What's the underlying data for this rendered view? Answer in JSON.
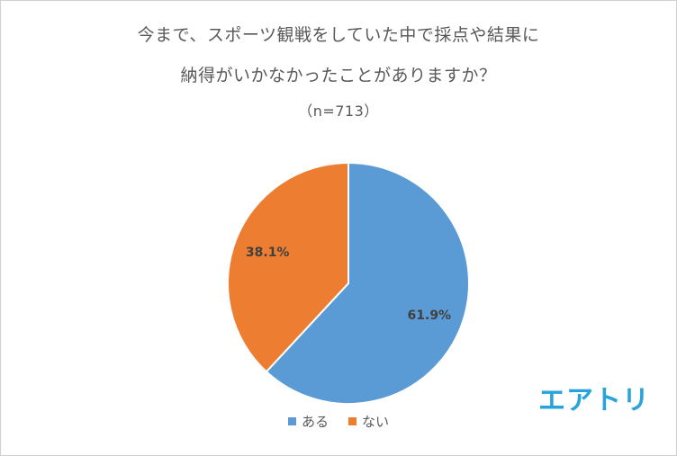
{
  "chart_data": {
    "type": "pie",
    "title_lines": [
      "今まで、スポーツ観戦をしていた中で採点や結果に",
      "納得がいかなかったことがありますか？"
    ],
    "subtitle": "（n=713）",
    "slices": [
      {
        "label": "ある",
        "value": 61.9,
        "display": "61.9%",
        "color": "#5b9bd5"
      },
      {
        "label": "ない",
        "value": 38.1,
        "display": "38.1%",
        "color": "#ed7d31"
      }
    ],
    "legend_placement": "bottom"
  },
  "logo": {
    "text": "エアトリ",
    "color": "#29a3db"
  }
}
